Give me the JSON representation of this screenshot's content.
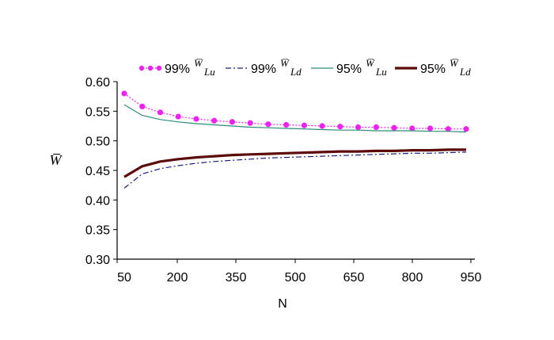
{
  "chart_data": {
    "type": "line",
    "title": "",
    "xlabel": "N",
    "ylabel": "W̅",
    "x": [
      50,
      100,
      150,
      200,
      250,
      300,
      350,
      400,
      450,
      500,
      550,
      600,
      650,
      700,
      750,
      800,
      850,
      900,
      950,
      1000
    ],
    "x_ticks": [
      50,
      200,
      350,
      500,
      650,
      800,
      950
    ],
    "y_ticks": [
      "0.30",
      "0.35",
      "0.40",
      "0.45",
      "0.50",
      "0.55",
      "0.60"
    ],
    "xlim": [
      50,
      1000
    ],
    "ylim": [
      0.3,
      0.6
    ],
    "grid": false,
    "legend_position": "top",
    "series": [
      {
        "name": "99%W̅Lu",
        "legend_pct": "99%",
        "legend_symbol": "W̅",
        "legend_sub": "Lu",
        "color": "#ee22ee",
        "style": "dotted-markers",
        "values": [
          0.58,
          0.558,
          0.548,
          0.541,
          0.537,
          0.534,
          0.532,
          0.53,
          0.528,
          0.527,
          0.526,
          0.525,
          0.524,
          0.523,
          0.523,
          0.522,
          0.521,
          0.521,
          0.52,
          0.52
        ]
      },
      {
        "name": "99%W̅Ld",
        "legend_pct": "99%",
        "legend_symbol": "W̅",
        "legend_sub": "Ld",
        "color": "#1a1a7a",
        "style": "dashdot",
        "values": [
          0.42,
          0.444,
          0.453,
          0.458,
          0.462,
          0.465,
          0.467,
          0.469,
          0.471,
          0.472,
          0.473,
          0.474,
          0.475,
          0.476,
          0.477,
          0.478,
          0.479,
          0.479,
          0.48,
          0.481
        ]
      },
      {
        "name": "95%W̅Lu",
        "legend_pct": "95%",
        "legend_symbol": "W̅",
        "legend_sub": "Lu",
        "color": "#2e8b7a",
        "style": "solid-thin",
        "values": [
          0.561,
          0.543,
          0.536,
          0.532,
          0.529,
          0.527,
          0.525,
          0.523,
          0.522,
          0.521,
          0.52,
          0.519,
          0.518,
          0.518,
          0.517,
          0.517,
          0.517,
          0.516,
          0.516,
          0.515
        ]
      },
      {
        "name": "95%W̅Ld",
        "legend_pct": "95%",
        "legend_symbol": "W̅",
        "legend_sub": "Ld",
        "color": "#5c0a0a",
        "style": "solid-thick",
        "values": [
          0.439,
          0.457,
          0.465,
          0.469,
          0.472,
          0.474,
          0.476,
          0.477,
          0.478,
          0.479,
          0.48,
          0.481,
          0.482,
          0.482,
          0.483,
          0.483,
          0.484,
          0.484,
          0.485,
          0.485
        ]
      }
    ]
  }
}
